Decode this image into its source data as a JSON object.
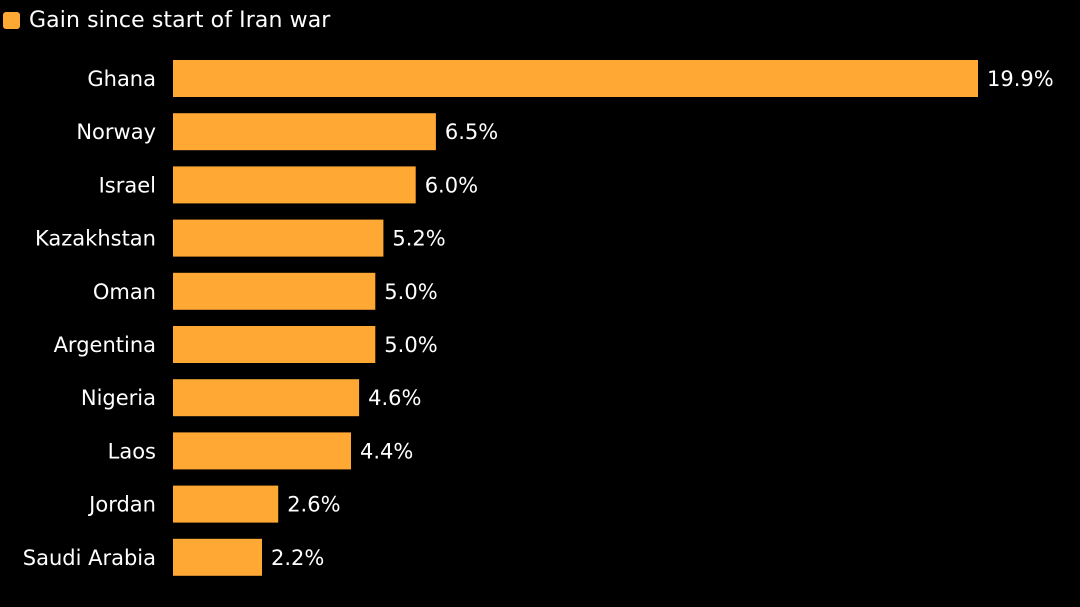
{
  "colors": {
    "background": "#000000",
    "bar": "#FFA834",
    "text": "#FFFFFF"
  },
  "chart_data": {
    "type": "bar",
    "orientation": "horizontal",
    "title": "",
    "xlabel": "",
    "ylabel": "",
    "legend": {
      "position": "top-left",
      "entries": [
        "Gain since start of Iran war"
      ]
    },
    "grid": false,
    "xlim": [
      0,
      19.9
    ],
    "categories": [
      "Ghana",
      "Norway",
      "Israel",
      "Kazakhstan",
      "Oman",
      "Argentina",
      "Nigeria",
      "Laos",
      "Jordan",
      "Saudi Arabia"
    ],
    "series": [
      {
        "name": "Gain since start of Iran war",
        "values": [
          19.9,
          6.5,
          6.0,
          5.2,
          5.0,
          5.0,
          4.6,
          4.4,
          2.6,
          2.2
        ],
        "labels": [
          "19.9%",
          "6.5%",
          "6.0%",
          "5.2%",
          "5.0%",
          "5.0%",
          "4.6%",
          "4.4%",
          "2.6%",
          "2.2%"
        ]
      }
    ]
  }
}
